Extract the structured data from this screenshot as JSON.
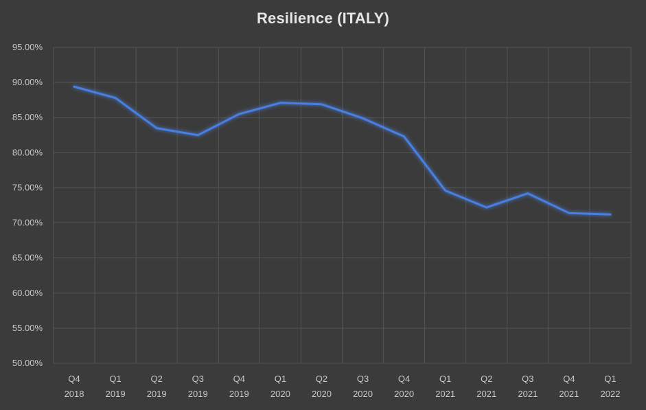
{
  "chart_data": {
    "type": "line",
    "title": "Resilience (ITALY)",
    "xlabel": "",
    "ylabel": "",
    "categories": [
      [
        "Q4",
        "2018"
      ],
      [
        "Q1",
        "2019"
      ],
      [
        "Q2",
        "2019"
      ],
      [
        "Q3",
        "2019"
      ],
      [
        "Q4",
        "2019"
      ],
      [
        "Q1",
        "2020"
      ],
      [
        "Q2",
        "2020"
      ],
      [
        "Q3",
        "2020"
      ],
      [
        "Q4",
        "2020"
      ],
      [
        "Q1",
        "2021"
      ],
      [
        "Q2",
        "2021"
      ],
      [
        "Q3",
        "2021"
      ],
      [
        "Q4",
        "2021"
      ],
      [
        "Q1",
        "2022"
      ]
    ],
    "series": [
      {
        "values": [
          89.4,
          87.8,
          83.5,
          82.5,
          85.5,
          87.1,
          86.9,
          84.9,
          82.3,
          74.6,
          72.2,
          74.2,
          71.4,
          71.2
        ]
      }
    ],
    "ylim": [
      50,
      95
    ],
    "y_ticks": [
      "50.00%",
      "55.00%",
      "60.00%",
      "65.00%",
      "70.00%",
      "75.00%",
      "80.00%",
      "85.00%",
      "90.00%",
      "95.00%"
    ],
    "y_tick_values": [
      50,
      55,
      60,
      65,
      70,
      75,
      80,
      85,
      90,
      95
    ],
    "grid": true,
    "legend": "none",
    "colors": {
      "line": "#4a7fe0",
      "background": "#3b3b3b",
      "grid": "#555555",
      "text": "#c9c9c9",
      "title": "#e6e6e6"
    }
  }
}
